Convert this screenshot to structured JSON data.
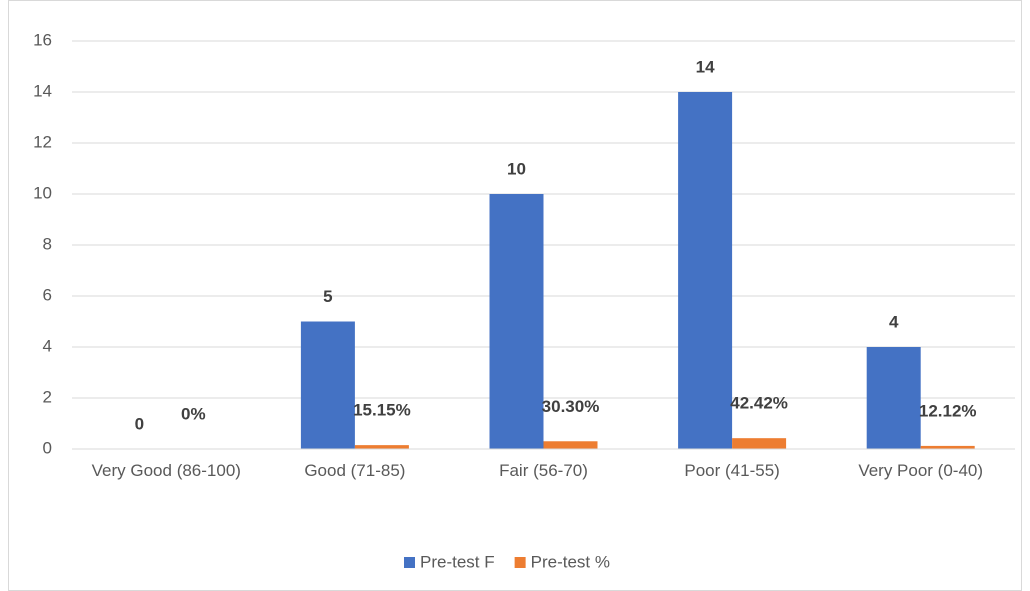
{
  "chart_data": {
    "type": "bar",
    "categories": [
      "Very Good (86-100)",
      "Good (71-85)",
      "Fair (56-70)",
      "Poor (41-55)",
      "Very Poor (0-40)"
    ],
    "series": [
      {
        "name": "Pre-test F",
        "color": "#4472c4",
        "values": [
          0,
          5,
          10,
          14,
          4
        ]
      },
      {
        "name": "Pre-test %",
        "color": "#ed7d31",
        "values": [
          0,
          0.1515,
          0.303,
          0.4242,
          0.1212
        ],
        "value_labels": [
          "0%",
          "15.15%",
          "30.30%",
          "42.42%",
          "12.12%"
        ]
      }
    ],
    "ylim": [
      0,
      16
    ],
    "yticks": [
      0,
      2,
      4,
      6,
      8,
      10,
      12,
      14,
      16
    ],
    "grid": true,
    "legend": "bottom"
  }
}
